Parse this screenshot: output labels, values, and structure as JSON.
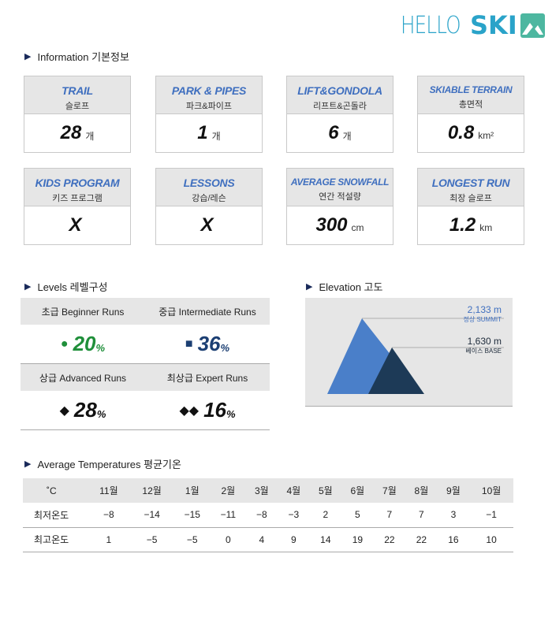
{
  "logo": {
    "hello": "HELLO",
    "ski": "SKI"
  },
  "info": {
    "title": "Information 기본정보",
    "cards": [
      {
        "en": "TRAIL",
        "ko": "슬로프",
        "value": "28",
        "unit": "개"
      },
      {
        "en": "PARK & PIPES",
        "ko": "파크&파이프",
        "value": "1",
        "unit": "개"
      },
      {
        "en": "LIFT&GONDOLA",
        "ko": "리프트&곤돌라",
        "value": "6",
        "unit": "개"
      },
      {
        "en": "SKIABLE TERRAIN",
        "ko": "총면적",
        "value": "0.8",
        "unit": "km²"
      },
      {
        "en": "KIDS PROGRAM",
        "ko": "키즈 프로그램",
        "value": "X",
        "unit": ""
      },
      {
        "en": "LESSONS",
        "ko": "강습/레슨",
        "value": "X",
        "unit": ""
      },
      {
        "en": "AVERAGE SNOWFALL",
        "ko": "연간 적설량",
        "value": "300",
        "unit": "cm"
      },
      {
        "en": "LONGEST RUN",
        "ko": "최장 슬로프",
        "value": "1.2",
        "unit": "km"
      }
    ]
  },
  "levels": {
    "title": "Levels 레벨구성",
    "beginner": {
      "label": "초급 Beginner Runs",
      "symbol": "●",
      "value": "20",
      "pct": "%",
      "color": "#1f8f3a"
    },
    "intermediate": {
      "label": "중급 Intermediate Runs",
      "symbol": "■",
      "value": "36",
      "pct": "%",
      "color": "#1c3f73"
    },
    "advanced": {
      "label": "상급 Advanced Runs",
      "symbol": "◆",
      "value": "28",
      "pct": "%",
      "color": "#111111"
    },
    "expert": {
      "label": "최상급 Expert Runs",
      "symbol": "◆◆",
      "value": "16",
      "pct": "%",
      "color": "#111111"
    }
  },
  "elevation": {
    "title": "Elevation 고도",
    "summit": {
      "value": "2,133 m",
      "label": "정상 SUMMIT"
    },
    "base": {
      "value": "1,630 m",
      "label": "베이스 BASE"
    }
  },
  "temperatures": {
    "title": "Average Temperatures 평균기온",
    "unit": "˚C",
    "months": [
      "11월",
      "12월",
      "1월",
      "2월",
      "3월",
      "4월",
      "5월",
      "6월",
      "7월",
      "8월",
      "9월",
      "10월"
    ],
    "rows": [
      {
        "label": "최저온도",
        "values": [
          "−8",
          "−14",
          "−15",
          "−11",
          "−8",
          "−3",
          "2",
          "5",
          "7",
          "7",
          "3",
          "−1"
        ]
      },
      {
        "label": "최고온도",
        "values": [
          "1",
          "−5",
          "−5",
          "0",
          "4",
          "9",
          "14",
          "19",
          "22",
          "22",
          "16",
          "10"
        ]
      }
    ]
  }
}
